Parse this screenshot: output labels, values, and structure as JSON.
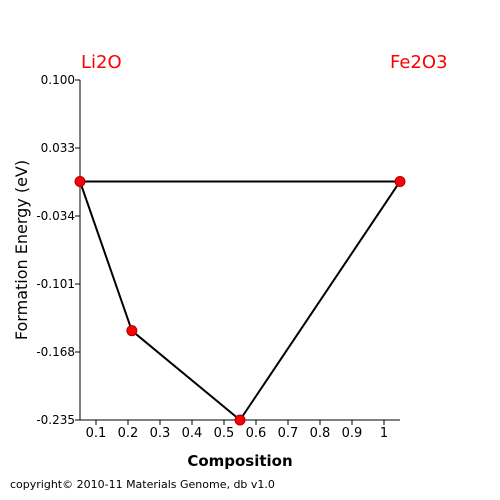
{
  "endpoints": {
    "left": "Li2O",
    "right": "Fe2O3",
    "color": "#ff0000"
  },
  "copyright": "copyright© 2010-11 Materials Genome, db v1.0",
  "chart_data": {
    "type": "scatter",
    "xlabel": "Composition",
    "ylabel": "Formation Energy (eV)",
    "xlim": [
      0.05,
      1.05
    ],
    "ylim": [
      -0.235,
      0.1
    ],
    "x_ticks": [
      "0.1",
      "0.2",
      "0.3",
      "0.4",
      "0.5",
      "0.6",
      "0.7",
      "0.8",
      "0.9",
      "1"
    ],
    "y_ticks": [
      "0.100",
      "0.033",
      "-0.034",
      "-0.101",
      "-0.168",
      "-0.235"
    ],
    "points": [
      {
        "x": 0.05,
        "y": 0.0
      },
      {
        "x": 0.212,
        "y": -0.147
      },
      {
        "x": 0.55,
        "y": -0.235
      },
      {
        "x": 1.05,
        "y": 0.0
      }
    ],
    "hull_order": [
      0,
      1,
      2,
      3,
      0
    ],
    "point_color": "#ff0000",
    "line_color": "#000000",
    "grid": false
  }
}
